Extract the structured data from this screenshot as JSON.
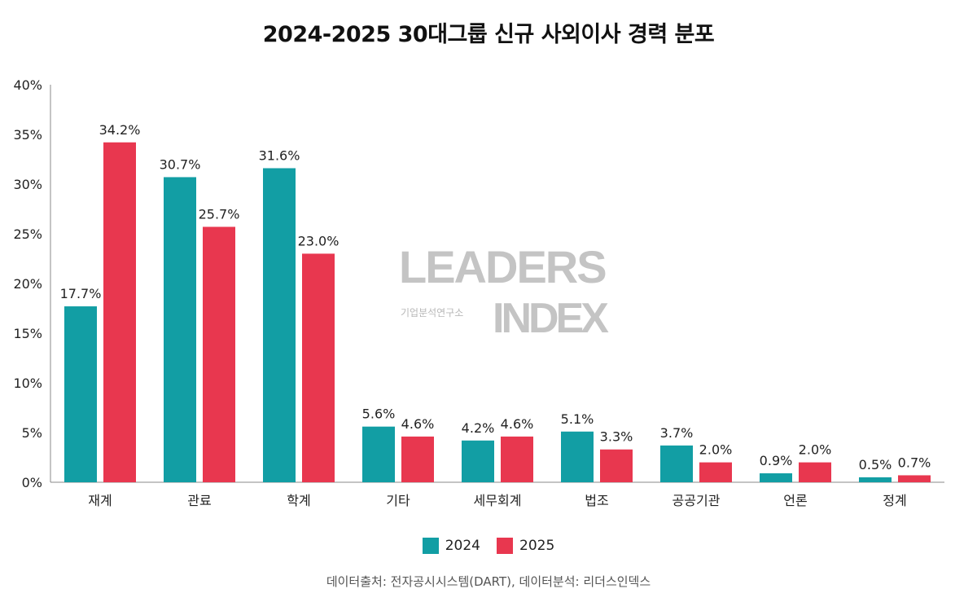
{
  "chart_data": {
    "type": "bar",
    "title": "2024-2025 30대그룹 신규 사외이사 경력 분포",
    "categories": [
      "재계",
      "관료",
      "학계",
      "기타",
      "세무회계",
      "법조",
      "공공기관",
      "언론",
      "정계"
    ],
    "series": [
      {
        "name": "2024",
        "color": "#129EA4",
        "values": [
          17.7,
          30.7,
          31.6,
          5.6,
          4.2,
          5.1,
          3.7,
          0.9,
          0.5
        ],
        "labels": [
          "17.7%",
          "30.7%",
          "31.6%",
          "5.6%",
          "4.2%",
          "5.1%",
          "3.7%",
          "0.9%",
          "0.5%"
        ]
      },
      {
        "name": "2025",
        "color": "#E8374F",
        "values": [
          34.2,
          25.7,
          23.0,
          4.6,
          4.6,
          3.3,
          2.0,
          2.0,
          0.7
        ],
        "labels": [
          "34.2%",
          "25.7%",
          "23.0%",
          "4.6%",
          "4.6%",
          "3.3%",
          "2.0%",
          "2.0%",
          "0.7%"
        ]
      }
    ],
    "ylim": [
      0,
      40
    ],
    "yticks": [
      "0%",
      "5%",
      "10%",
      "15%",
      "20%",
      "25%",
      "30%",
      "35%",
      "40%"
    ],
    "xlabel": "",
    "ylabel": "",
    "grid": false,
    "legend": "bottom"
  },
  "watermark": {
    "line1": "LEADERS",
    "line2": "기업분석연구소",
    "line3": "INDEX"
  },
  "source": "데이터출처: 전자공시시스템(DART), 데이터분석: 리더스인덱스"
}
